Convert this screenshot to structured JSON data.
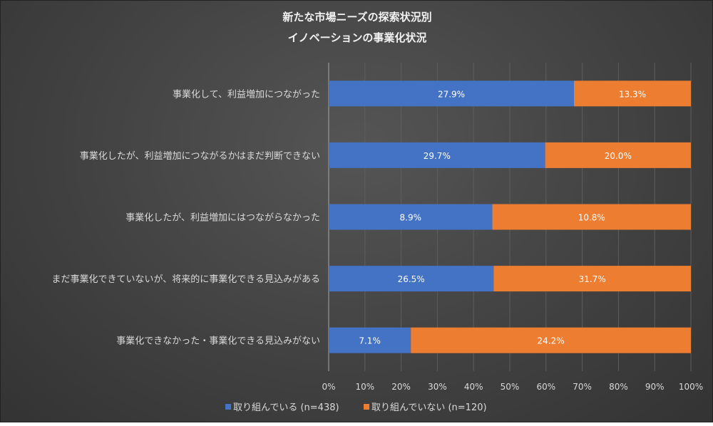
{
  "chart_data": {
    "type": "bar",
    "orientation": "horizontal",
    "stacked": "percent",
    "title": [
      "新たな市場ニーズの探索状況別",
      "イノベーションの事業化状況"
    ],
    "categories": [
      "事業化して、利益増加につながった",
      "事業化したが、利益増加につながるかはまだ判断できない",
      "事業化したが、利益増加にはつながらなかった",
      "まだ事業化できていないが、将来的に事業化できる見込みがある",
      "事業化できなかった・事業化できる見込みがない"
    ],
    "series": [
      {
        "name": "取り組んでいる (n=438)",
        "color": "#4472c4",
        "values": [
          27.9,
          29.7,
          8.9,
          26.5,
          7.1
        ],
        "labels": [
          "27.9%",
          "29.7%",
          "8.9%",
          "26.5%",
          "7.1%"
        ]
      },
      {
        "name": "取り組んでいない (n=120)",
        "color": "#ed7d31",
        "values": [
          13.3,
          20.0,
          10.8,
          31.7,
          24.2
        ],
        "labels": [
          "13.3%",
          "20.0%",
          "10.8%",
          "31.7%",
          "24.2%"
        ]
      }
    ],
    "xticks": [
      "0%",
      "10%",
      "20%",
      "30%",
      "40%",
      "50%",
      "60%",
      "70%",
      "80%",
      "90%",
      "100%"
    ],
    "xlim": [
      0,
      100
    ],
    "grid": true,
    "legend": "bottom"
  }
}
